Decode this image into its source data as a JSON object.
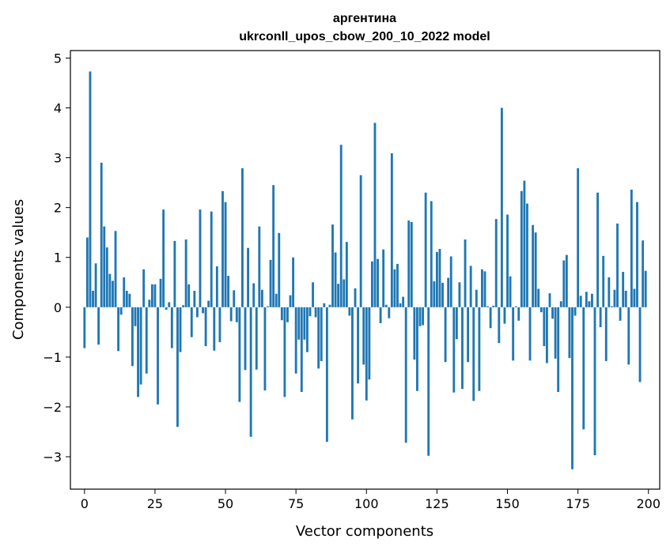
{
  "chart_data": {
    "type": "bar",
    "title": "аргентина",
    "subtitle": "ukrconll_upos_cbow_200_10_2022 model",
    "xlabel": "Vector components",
    "ylabel": "Components values",
    "xlim": [
      -5,
      204
    ],
    "ylim": [
      -3.65,
      5.15
    ],
    "xticks": [
      0,
      25,
      50,
      75,
      100,
      125,
      150,
      175,
      200
    ],
    "yticks": [
      -3,
      -2,
      -1,
      0,
      1,
      2,
      3,
      4,
      5
    ],
    "xtick_labels": [
      "0",
      "25",
      "50",
      "75",
      "100",
      "125",
      "150",
      "175",
      "200"
    ],
    "ytick_labels": [
      "−3",
      "−2",
      "−1",
      "0",
      "1",
      "2",
      "3",
      "4",
      "5"
    ],
    "bar_color": "#1f77b4",
    "grid": false,
    "values": [
      -0.82,
      1.4,
      4.73,
      0.33,
      0.88,
      -0.75,
      2.9,
      1.62,
      1.2,
      0.67,
      0.53,
      1.53,
      -0.88,
      -0.15,
      0.6,
      0.33,
      0.27,
      -1.18,
      -0.38,
      -1.8,
      -1.55,
      0.76,
      -1.33,
      0.15,
      0.46,
      0.46,
      -1.95,
      0.57,
      1.96,
      -0.05,
      0.1,
      -0.82,
      1.33,
      -2.4,
      -0.9,
      0.04,
      1.36,
      0.46,
      -0.6,
      0.33,
      -0.2,
      1.96,
      -0.12,
      -0.78,
      0.13,
      1.92,
      -0.87,
      0.82,
      -0.7,
      2.33,
      2.11,
      0.63,
      -0.28,
      0.34,
      -0.3,
      -1.9,
      2.79,
      -1.26,
      1.19,
      -2.6,
      0.48,
      -1.25,
      1.62,
      0.35,
      -1.67,
      0.02,
      0.95,
      2.45,
      0.27,
      1.49,
      -0.26,
      -1.8,
      -0.3,
      0.24,
      1.0,
      -1.33,
      -0.65,
      -1.7,
      -0.65,
      -0.9,
      -0.18,
      0.5,
      -0.2,
      -1.23,
      -1.08,
      0.08,
      -2.7,
      0.05,
      1.66,
      1.1,
      0.47,
      3.26,
      0.56,
      1.31,
      -0.17,
      -2.25,
      0.38,
      -1.53,
      2.65,
      -1.15,
      -1.87,
      -1.45,
      0.92,
      3.7,
      0.97,
      -0.32,
      1.16,
      0.05,
      -0.22,
      3.09,
      0.76,
      0.87,
      0.08,
      0.21,
      -2.72,
      1.74,
      1.71,
      -1.05,
      -1.68,
      -0.38,
      -0.36,
      2.3,
      -2.98,
      2.13,
      0.52,
      1.11,
      1.17,
      0.49,
      -1.1,
      0.59,
      1.02,
      -1.71,
      -0.64,
      0.5,
      -1.64,
      1.36,
      -1.1,
      0.83,
      -1.88,
      0.35,
      -1.68,
      0.76,
      0.72,
      0.02,
      -0.42,
      0.03,
      1.77,
      -0.72,
      4.0,
      -0.33,
      1.86,
      0.62,
      -1.07,
      0.02,
      -0.27,
      2.33,
      2.54,
      2.08,
      -1.07,
      1.65,
      1.5,
      0.37,
      -0.1,
      -0.78,
      -1.12,
      0.28,
      -0.23,
      -1.03,
      -1.7,
      0.12,
      0.94,
      1.05,
      -1.02,
      -3.25,
      -0.17,
      2.79,
      0.23,
      -2.45,
      0.31,
      0.12,
      0.27,
      -2.97,
      2.3,
      -0.4,
      1.03,
      -1.08,
      0.6,
      0.02,
      0.35,
      1.68,
      -0.27,
      0.71,
      0.33,
      -1.15,
      2.36,
      0.37,
      2.11,
      -1.5,
      1.34,
      0.73
    ]
  }
}
